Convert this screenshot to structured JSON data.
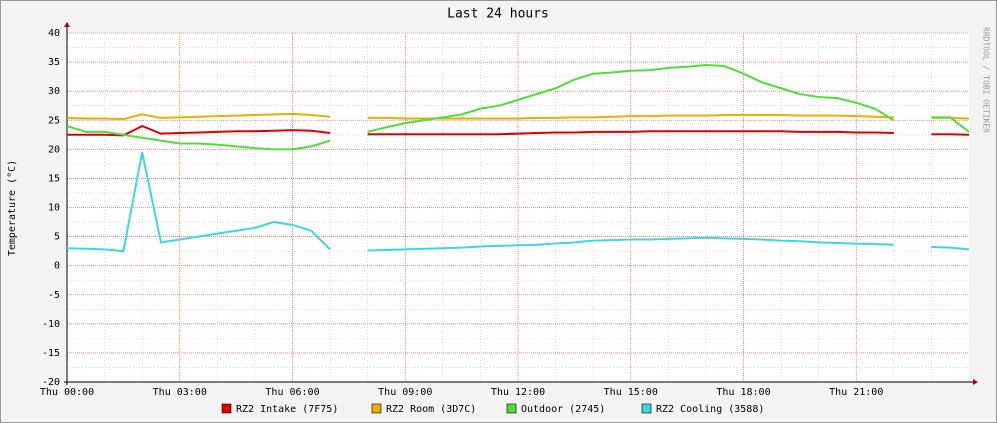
{
  "chart_data": {
    "type": "line",
    "title": "Last 24 hours",
    "y_label": "Temperature (°C)",
    "watermark": "RRDTOOL / TOBI OETIKER",
    "x": [
      0,
      0.5,
      1,
      1.5,
      2,
      2.5,
      3,
      3.5,
      4,
      4.5,
      5,
      5.5,
      6,
      6.5,
      7,
      7.5,
      8,
      8.5,
      9,
      9.5,
      10,
      10.5,
      11,
      11.5,
      12,
      12.5,
      13,
      13.5,
      14,
      14.5,
      15,
      15.5,
      16,
      16.5,
      17,
      17.5,
      18,
      18.5,
      19,
      19.5,
      20,
      20.5,
      21,
      21.5,
      22,
      22.5,
      23,
      23.5,
      24
    ],
    "xlim": [
      0,
      24
    ],
    "xticks": [
      {
        "value": 0,
        "label": "Thu 00:00"
      },
      {
        "value": 3,
        "label": "Thu 03:00"
      },
      {
        "value": 6,
        "label": "Thu 06:00"
      },
      {
        "value": 9,
        "label": "Thu 09:00"
      },
      {
        "value": 12,
        "label": "Thu 12:00"
      },
      {
        "value": 15,
        "label": "Thu 15:00"
      },
      {
        "value": 18,
        "label": "Thu 18:00"
      },
      {
        "value": 21,
        "label": "Thu 21:00"
      }
    ],
    "ylim": [
      -20,
      40
    ],
    "yticks": [
      -20,
      -15,
      -10,
      -5,
      0,
      5,
      10,
      15,
      20,
      25,
      30,
      35,
      40
    ],
    "grid": true,
    "series": [
      {
        "name": "RZ2 Intake (7F75)",
        "color": "#e00000",
        "values": [
          22.5,
          22.5,
          22.5,
          22.4,
          24,
          22.7,
          22.8,
          22.9,
          23,
          23.1,
          23.1,
          23.2,
          23.3,
          23.2,
          22.8,
          null,
          22.6,
          22.6,
          22.6,
          22.6,
          22.6,
          22.6,
          22.6,
          22.6,
          22.7,
          22.8,
          22.9,
          22.9,
          23,
          23,
          23,
          23.1,
          23.1,
          23.1,
          23.1,
          23.1,
          23.1,
          23.1,
          23.1,
          23,
          23,
          23,
          22.9,
          22.9,
          22.8,
          null,
          22.6,
          22.6,
          22.5
        ]
      },
      {
        "name": "RZ2 Room (3D7C)",
        "color": "#e8b000",
        "values": [
          25.4,
          25.3,
          25.3,
          25.2,
          26,
          25.4,
          25.5,
          25.6,
          25.7,
          25.8,
          25.9,
          26,
          26.1,
          25.9,
          25.6,
          null,
          25.4,
          25.4,
          25.3,
          25.3,
          25.3,
          25.3,
          25.3,
          25.3,
          25.3,
          25.4,
          25.4,
          25.5,
          25.5,
          25.6,
          25.7,
          25.7,
          25.8,
          25.8,
          25.8,
          25.9,
          25.9,
          25.9,
          25.9,
          25.8,
          25.8,
          25.8,
          25.7,
          25.6,
          25.5,
          null,
          25.4,
          25.4,
          25.3
        ]
      },
      {
        "name": "Outdoor (2745)",
        "color": "#50dd3c",
        "values": [
          24,
          23,
          23,
          22.5,
          22,
          21.5,
          21,
          21,
          20.8,
          20.5,
          20.2,
          20,
          20,
          20.5,
          21.5,
          null,
          23,
          23.8,
          24.5,
          25,
          25.5,
          26,
          27,
          27.5,
          28.5,
          29.5,
          30.5,
          32,
          33,
          33.2,
          33.5,
          33.6,
          34,
          34.2,
          34.5,
          34.3,
          33,
          31.5,
          30.5,
          29.5,
          29,
          28.8,
          28,
          27,
          25,
          null,
          25.5,
          25.5,
          23
        ]
      },
      {
        "name": "RZ2 Cooling (3588)",
        "color": "#3dd7e0",
        "values": [
          3,
          2.9,
          2.8,
          2.5,
          19.5,
          4,
          4.5,
          5,
          5.5,
          6,
          6.5,
          7.5,
          7,
          6,
          2.8,
          null,
          2.6,
          2.7,
          2.8,
          2.9,
          3,
          3.1,
          3.3,
          3.4,
          3.5,
          3.6,
          3.8,
          4,
          4.3,
          4.4,
          4.5,
          4.5,
          4.6,
          4.7,
          4.8,
          4.7,
          4.6,
          4.5,
          4.3,
          4.2,
          4,
          3.9,
          3.8,
          3.7,
          3.6,
          null,
          3.2,
          3.1,
          2.8
        ]
      }
    ]
  }
}
